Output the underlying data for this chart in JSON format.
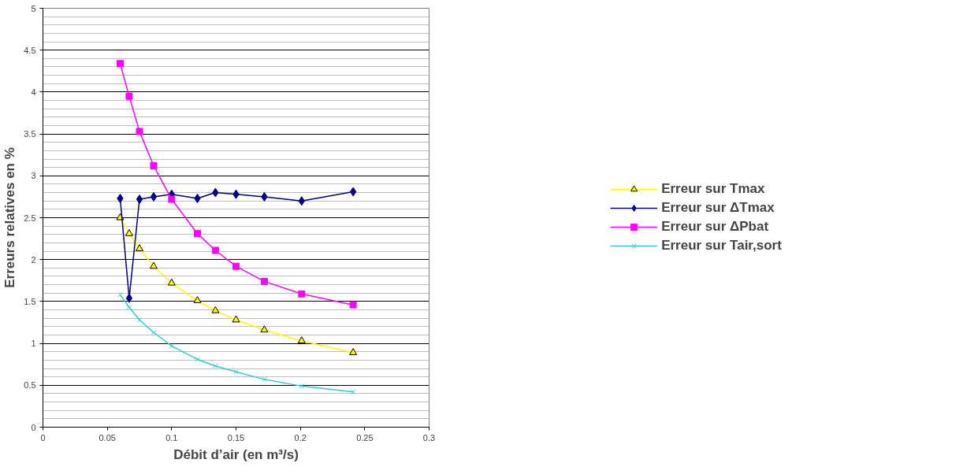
{
  "chart_data": {
    "type": "line",
    "xlabel": "Débit d’air (en m³/s)",
    "ylabel": "Erreurs relatives en %",
    "x": [
      0.06,
      0.067,
      0.075,
      0.086,
      0.1,
      0.12,
      0.134,
      0.15,
      0.172,
      0.201,
      0.241
    ],
    "series": [
      {
        "name": "Erreur sur Tmax",
        "color": "#ffff00",
        "marker": "triangle",
        "values": [
          2.5,
          2.31,
          2.13,
          1.92,
          1.72,
          1.51,
          1.39,
          1.28,
          1.16,
          1.03,
          0.89
        ]
      },
      {
        "name": "Erreur sur ΔTmax",
        "color": "#000080",
        "marker": "diamond",
        "values": [
          2.73,
          1.54,
          2.72,
          2.75,
          2.78,
          2.73,
          2.8,
          2.78,
          2.75,
          2.7,
          2.81
        ]
      },
      {
        "name": "Erreur sur ΔPbat",
        "color": "#ff00ff",
        "marker": "square",
        "values": [
          4.34,
          3.95,
          3.53,
          3.12,
          2.72,
          2.31,
          2.11,
          1.92,
          1.74,
          1.59,
          1.46
        ]
      },
      {
        "name": "Erreur sur Tair,sort",
        "color": "#33cccc",
        "marker": "cross",
        "values": [
          1.58,
          1.43,
          1.28,
          1.13,
          0.97,
          0.81,
          0.73,
          0.66,
          0.57,
          0.49,
          0.42
        ]
      }
    ],
    "xlim": [
      0,
      0.3
    ],
    "ylim": [
      0,
      5
    ],
    "xticks": [
      0,
      0.05,
      0.1,
      0.15,
      0.2,
      0.25,
      0.3
    ],
    "yticks": [
      0,
      0.5,
      1,
      1.5,
      2,
      2.5,
      3,
      3.5,
      4,
      4.5,
      5
    ],
    "grid": "y",
    "legend": "right",
    "line_style": "solid"
  }
}
